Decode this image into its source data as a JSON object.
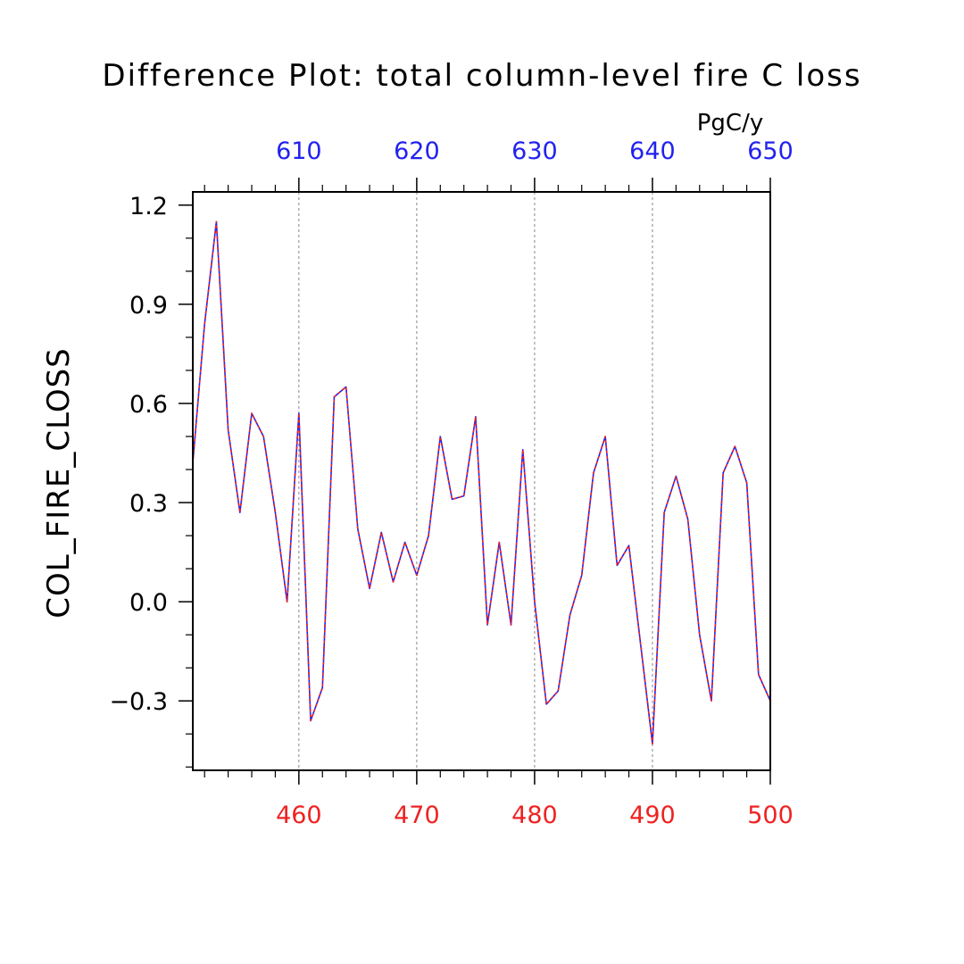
{
  "chart_data": {
    "type": "line",
    "title": "Difference Plot: total column-level fire C loss",
    "ylabel": "COL_FIRE_CLOSS",
    "units_label": "PgC/y",
    "xlim": [
      451,
      500
    ],
    "ylim": [
      -0.51,
      1.24
    ],
    "grid": "vertical dashed lines at major x ticks",
    "x_bottom": {
      "ticks": [
        460,
        470,
        480,
        490,
        500
      ],
      "tick_labels": [
        "460",
        "470",
        "480",
        "490",
        "500"
      ],
      "color": "#ee2222"
    },
    "x_top": {
      "ticks": [
        610,
        620,
        630,
        640,
        650
      ],
      "tick_labels": [
        "610",
        "620",
        "630",
        "640",
        "650"
      ],
      "offset": 150,
      "color": "#2222ee"
    },
    "y_ticks": [
      -0.3,
      0.0,
      0.3,
      0.6,
      0.9,
      1.2
    ],
    "y_tick_labels": [
      "−0.3",
      "0.0",
      "0.3",
      "0.6",
      "0.9",
      "1.2"
    ],
    "x": [
      451,
      452,
      453,
      454,
      455,
      456,
      457,
      458,
      459,
      460,
      461,
      462,
      463,
      464,
      465,
      466,
      467,
      468,
      469,
      470,
      471,
      472,
      473,
      474,
      475,
      476,
      477,
      478,
      479,
      480,
      481,
      482,
      483,
      484,
      485,
      486,
      487,
      488,
      489,
      490,
      491,
      492,
      493,
      494,
      495,
      496,
      497,
      498,
      499,
      500
    ],
    "series": [
      {
        "color": "#2222ee",
        "style": "solid",
        "values": [
          0.42,
          0.84,
          1.15,
          0.52,
          0.27,
          0.57,
          0.5,
          0.27,
          0.0,
          0.57,
          -0.36,
          -0.26,
          0.62,
          0.65,
          0.22,
          0.04,
          0.21,
          0.06,
          0.18,
          0.08,
          0.2,
          0.5,
          0.31,
          0.32,
          0.56,
          -0.07,
          0.18,
          -0.07,
          0.46,
          0.0,
          -0.31,
          -0.27,
          -0.04,
          0.08,
          0.39,
          0.5,
          0.11,
          0.17,
          -0.13,
          -0.43,
          0.27,
          0.38,
          0.25,
          -0.1,
          -0.3,
          0.39,
          0.47,
          0.36,
          -0.22,
          -0.3
        ]
      },
      {
        "color": "#ee2222",
        "style": "dashed",
        "values": [
          0.42,
          0.84,
          1.15,
          0.52,
          0.27,
          0.57,
          0.5,
          0.27,
          0.0,
          0.57,
          -0.36,
          -0.26,
          0.62,
          0.65,
          0.22,
          0.04,
          0.21,
          0.06,
          0.18,
          0.08,
          0.2,
          0.5,
          0.31,
          0.32,
          0.56,
          -0.07,
          0.18,
          -0.07,
          0.46,
          0.0,
          -0.31,
          -0.27,
          -0.04,
          0.08,
          0.39,
          0.5,
          0.11,
          0.17,
          -0.13,
          -0.43,
          0.27,
          0.38,
          0.25,
          -0.1,
          -0.3,
          0.39,
          0.47,
          0.36,
          -0.22,
          -0.3
        ]
      }
    ]
  }
}
